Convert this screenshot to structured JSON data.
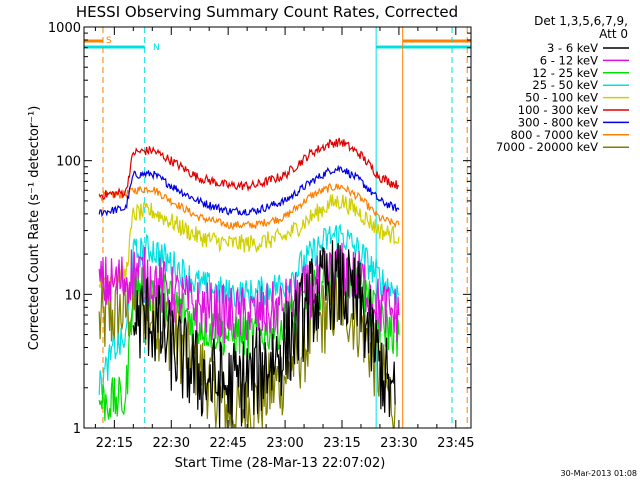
{
  "chart_data": {
    "type": "line",
    "title": "HESSI Observing Summary Count Rates, Corrected",
    "xlabel": "Start Time (28-Mar-13 22:07:02)",
    "ylabel": "Corrected Count Rate (s⁻¹ detector⁻¹)",
    "y_scale": "log",
    "ylim": [
      1,
      1000
    ],
    "xlim": [
      "22:07",
      "23:49"
    ],
    "x_ticks": [
      "22:15",
      "22:30",
      "22:45",
      "23:00",
      "23:15",
      "23:30",
      "23:45"
    ],
    "y_ticks": [
      "1",
      "10",
      "100",
      "1000"
    ],
    "timestamp": "30-Mar-2013 01:08",
    "legend": {
      "header": [
        "Det 1,3,5,6,7,9,",
        "Att 0"
      ],
      "position": "right",
      "entries": [
        {
          "label": "3 - 6 keV",
          "color": "#000000"
        },
        {
          "label": "6 - 12 keV",
          "color": "#e010e0"
        },
        {
          "label": "12 - 25 keV",
          "color": "#00e000"
        },
        {
          "label": "25 - 50 keV",
          "color": "#00e0e0"
        },
        {
          "label": "50 - 100 keV",
          "color": "#d0d000"
        },
        {
          "label": "100 - 300 keV",
          "color": "#e00000"
        },
        {
          "label": "300 - 800 keV",
          "color": "#0000e0"
        },
        {
          "label": "800 - 7000 keV",
          "color": "#ff8000"
        },
        {
          "label": "7000 - 20000 keV",
          "color": "#808000"
        }
      ]
    },
    "annotations": [
      {
        "text": "S",
        "color": "#ff8000"
      },
      {
        "text": "N",
        "color": "#00e0e0"
      }
    ],
    "series": [
      {
        "name": "3 - 6 keV",
        "color": "#000000",
        "x": [
          "22:20",
          "22:24",
          "22:30",
          "22:37",
          "22:45",
          "22:52",
          "23:00",
          "23:07",
          "23:12",
          "23:15",
          "23:20",
          "23:25",
          "23:29"
        ],
        "y": [
          6,
          7,
          4,
          2.5,
          2,
          2.5,
          4,
          9,
          12,
          11,
          8,
          3,
          1.5
        ]
      },
      {
        "name": "6 - 12 keV",
        "color": "#e010e0",
        "x": [
          "22:11",
          "22:15",
          "22:18",
          "22:20",
          "22:25",
          "22:30",
          "22:37",
          "22:45",
          "22:52",
          "23:00",
          "23:07",
          "23:12",
          "23:15",
          "23:20",
          "23:25",
          "23:30"
        ],
        "y": [
          12,
          12,
          13,
          15,
          13,
          10,
          8,
          7,
          7,
          8,
          11,
          14,
          15,
          13,
          8,
          7
        ]
      },
      {
        "name": "12 - 25 keV",
        "color": "#00e000",
        "x": [
          "22:11",
          "22:18",
          "22:20",
          "22:25",
          "22:30",
          "22:37",
          "22:45",
          "22:52",
          "23:00",
          "23:07",
          "23:12",
          "23:15",
          "23:20",
          "23:25",
          "23:30"
        ],
        "y": [
          1.6,
          1.6,
          12,
          11,
          9,
          6,
          5,
          5,
          6,
          10,
          14,
          15,
          11,
          6,
          5
        ]
      },
      {
        "name": "25 - 50 keV",
        "color": "#00e0e0",
        "x": [
          "22:11",
          "22:15",
          "22:18",
          "22:20",
          "22:25",
          "22:30",
          "22:37",
          "22:45",
          "22:52",
          "23:00",
          "23:07",
          "23:12",
          "23:15",
          "23:20",
          "23:25",
          "23:30"
        ],
        "y": [
          2,
          4,
          4.5,
          20,
          22,
          17,
          12,
          10,
          10,
          12,
          20,
          27,
          28,
          20,
          13,
          10
        ]
      },
      {
        "name": "50 - 100 keV",
        "color": "#d0d000",
        "x": [
          "22:11",
          "22:18",
          "22:20",
          "22:25",
          "22:30",
          "22:37",
          "22:45",
          "22:52",
          "23:00",
          "23:07",
          "23:12",
          "23:15",
          "23:20",
          "23:25",
          "23:30"
        ],
        "y": [
          13,
          14,
          40,
          42,
          35,
          27,
          24,
          24,
          27,
          38,
          48,
          50,
          40,
          30,
          27
        ]
      },
      {
        "name": "100 - 300 keV",
        "color": "#e00000",
        "x": [
          "22:11",
          "22:18",
          "22:20",
          "22:25",
          "22:30",
          "22:37",
          "22:45",
          "22:52",
          "23:00",
          "23:07",
          "23:12",
          "23:15",
          "23:20",
          "23:25",
          "23:30"
        ],
        "y": [
          55,
          58,
          115,
          120,
          100,
          75,
          65,
          65,
          78,
          115,
          135,
          138,
          110,
          75,
          65
        ]
      },
      {
        "name": "300 - 800 keV",
        "color": "#0000e0",
        "x": [
          "22:11",
          "22:18",
          "22:20",
          "22:25",
          "22:30",
          "22:37",
          "22:45",
          "22:52",
          "23:00",
          "23:07",
          "23:12",
          "23:15",
          "23:20",
          "23:25",
          "23:30"
        ],
        "y": [
          41,
          44,
          78,
          80,
          65,
          50,
          42,
          42,
          50,
          70,
          85,
          88,
          70,
          50,
          43
        ]
      },
      {
        "name": "800 - 7000 keV",
        "color": "#ff8000",
        "x": [
          "22:11",
          "22:18",
          "22:20",
          "22:25",
          "22:30",
          "22:37",
          "22:45",
          "22:52",
          "23:00",
          "23:07",
          "23:12",
          "23:15",
          "23:20",
          "23:25",
          "23:30"
        ],
        "y": [
          54,
          56,
          60,
          62,
          50,
          38,
          33,
          33,
          38,
          55,
          63,
          64,
          52,
          37,
          33
        ]
      },
      {
        "name": "7000 - 20000 keV",
        "color": "#808000",
        "x": [
          "22:11",
          "22:15",
          "22:20",
          "22:25",
          "22:30",
          "22:37",
          "22:45",
          "22:52",
          "23:00",
          "23:07",
          "23:12",
          "23:15",
          "23:20",
          "23:25",
          "23:29"
        ],
        "y": [
          6,
          7,
          8,
          7,
          5,
          3,
          1.3,
          1.5,
          2.5,
          5,
          8,
          9,
          6,
          2.5,
          1.5
        ]
      }
    ],
    "attenuator_segments": [
      {
        "color": "#ff8000",
        "from": "22:07",
        "to": "22:12"
      },
      {
        "color": "#ff8000",
        "from": "23:31",
        "to": "23:49"
      },
      {
        "color": "#00e0e0",
        "from": "22:07",
        "to": "22:23"
      },
      {
        "color": "#00e0e0",
        "from": "23:24",
        "to": "23:49"
      }
    ],
    "marker_lines": [
      {
        "time": "22:12",
        "color": "#ff8000",
        "style": "dashed"
      },
      {
        "time": "22:23",
        "color": "#00e0e0",
        "style": "dashed"
      },
      {
        "time": "23:24",
        "color": "#00e0e0",
        "style": "solid"
      },
      {
        "time": "23:31",
        "color": "#ff8000",
        "style": "solid"
      },
      {
        "time": "23:44",
        "color": "#00e0e0",
        "style": "dashed"
      },
      {
        "time": "23:48",
        "color": "#ff8000",
        "style": "dashed"
      }
    ]
  }
}
